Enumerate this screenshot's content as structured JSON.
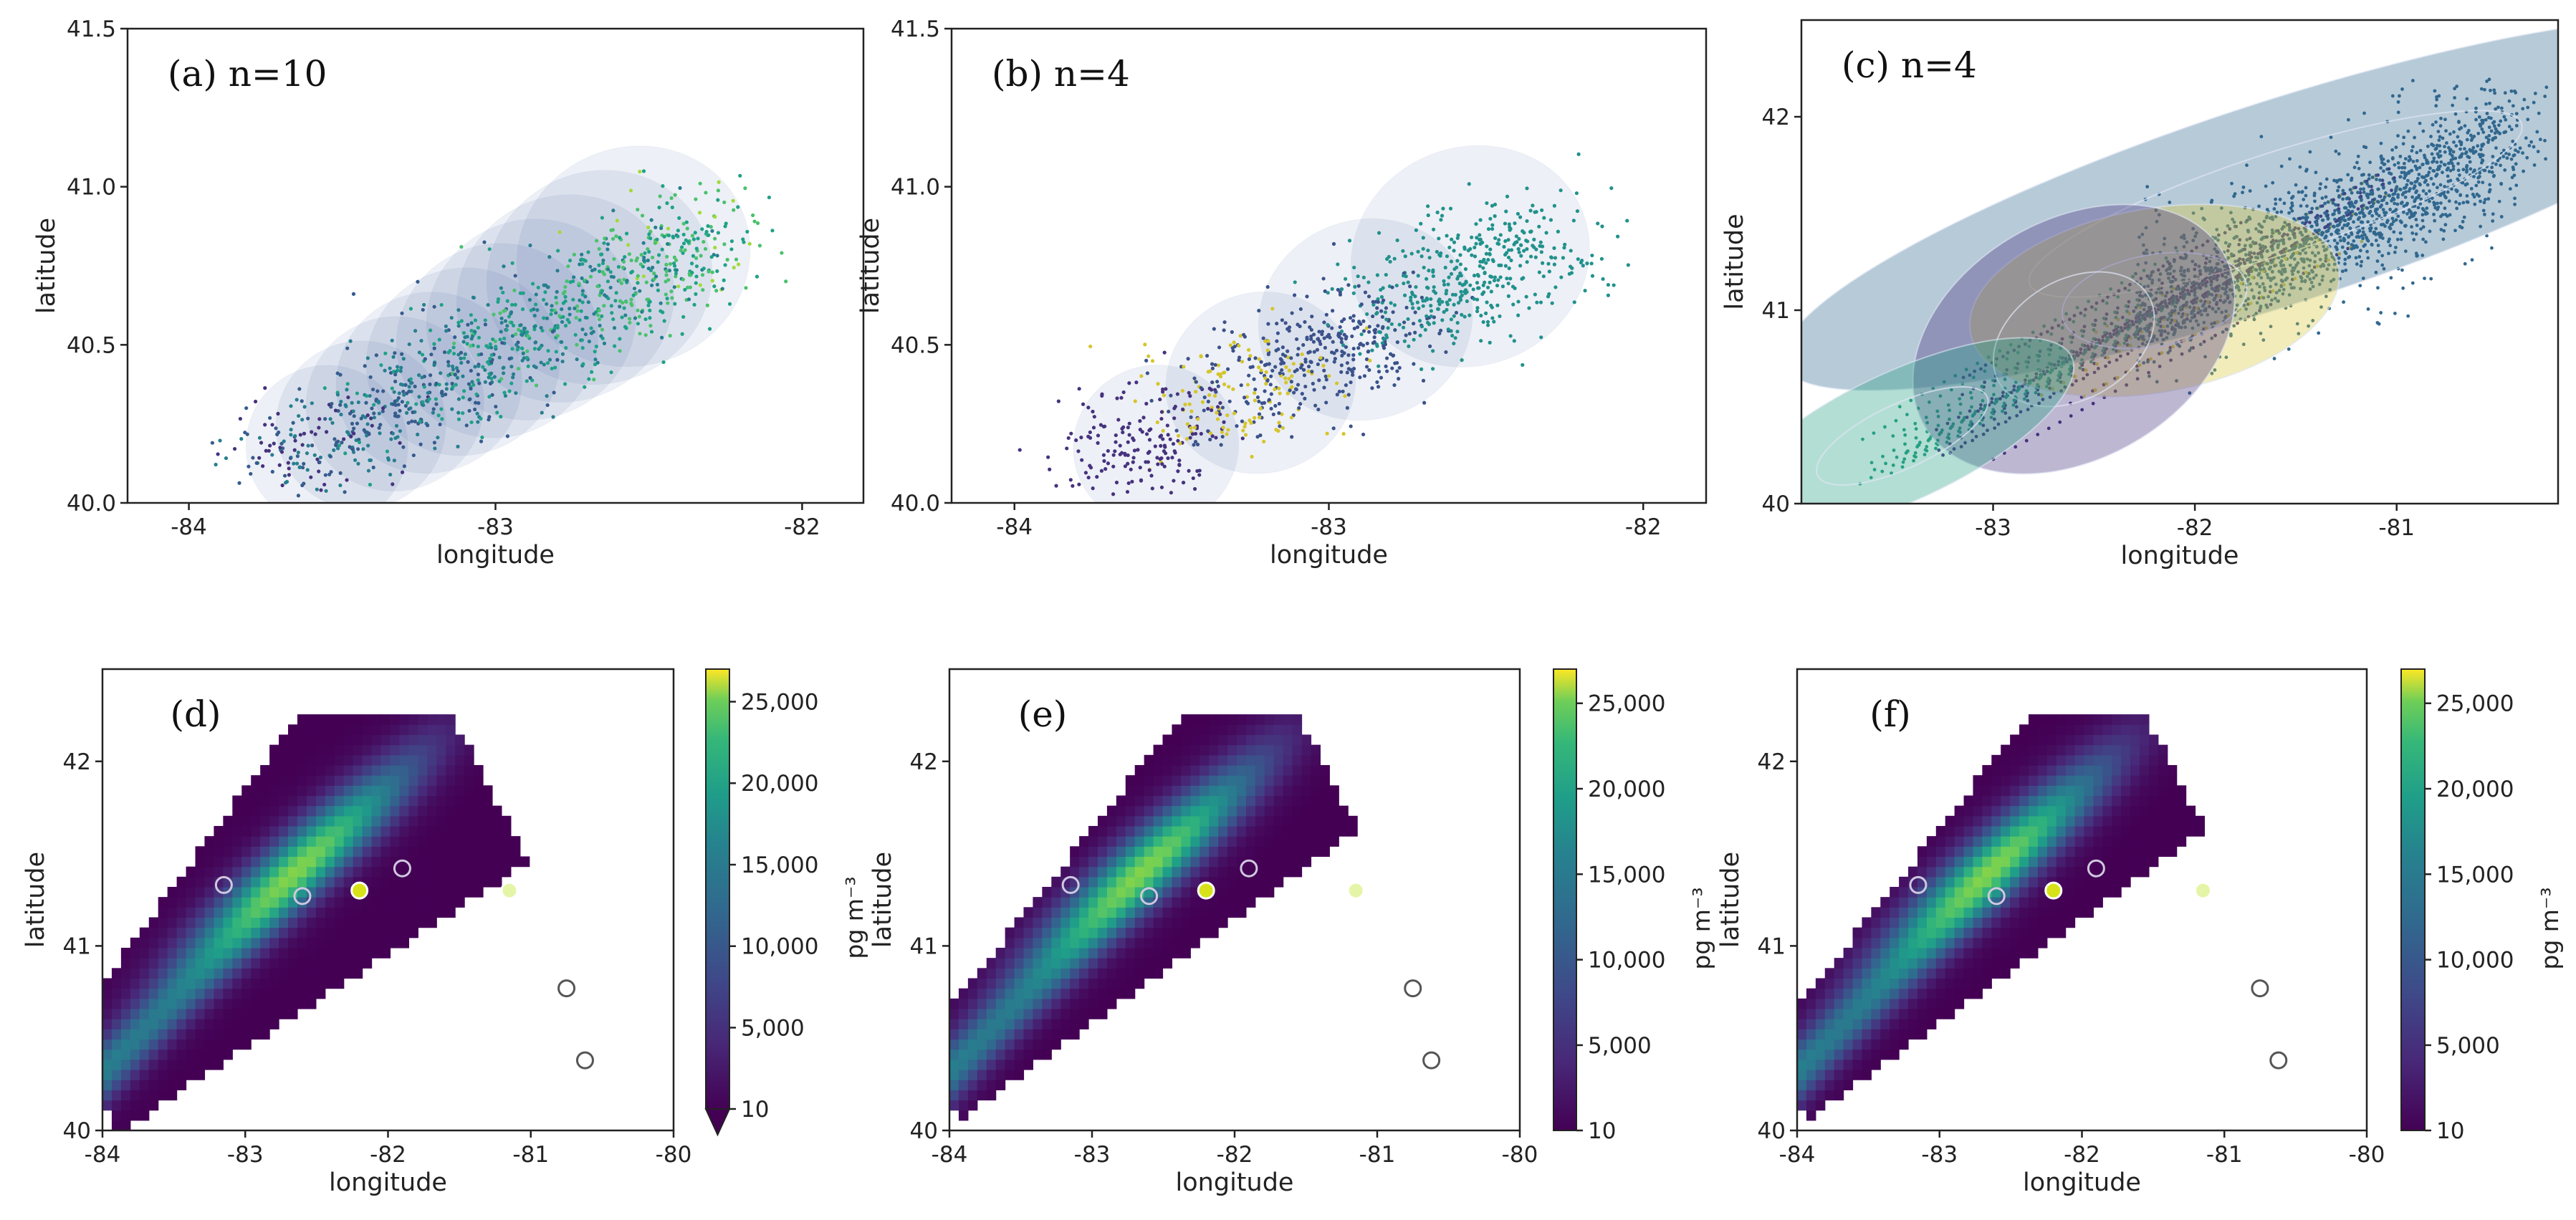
{
  "chart_data": [
    {
      "panel": "a",
      "type": "scatter",
      "title": "(a) n=10",
      "xlabel": "longitude",
      "ylabel": "latitude",
      "xlim": [
        -84.2,
        -81.8
      ],
      "ylim": [
        40.0,
        41.5
      ],
      "xticks": [
        "-84",
        "-83",
        "-82"
      ],
      "yticks": [
        "40.0",
        "40.5",
        "41.0",
        "41.5"
      ],
      "xtick_values": [
        -84,
        -83,
        -82
      ],
      "ytick_values": [
        40.0,
        40.5,
        41.0,
        41.5
      ],
      "mixture_components": 10,
      "grid": false,
      "legend": "none"
    },
    {
      "panel": "b",
      "type": "scatter",
      "title": "(b) n=4",
      "xlabel": "longitude",
      "ylabel": "latitude",
      "xlim": [
        -84.2,
        -81.8
      ],
      "ylim": [
        40.0,
        41.5
      ],
      "xticks": [
        "-84",
        "-83",
        "-82"
      ],
      "yticks": [
        "40.0",
        "40.5",
        "41.0",
        "41.5"
      ],
      "xtick_values": [
        -84,
        -83,
        -82
      ],
      "ytick_values": [
        40.0,
        40.5,
        41.0,
        41.5
      ],
      "mixture_components": 4,
      "grid": false,
      "legend": "none"
    },
    {
      "panel": "c",
      "type": "scatter",
      "title": "(c) n=4",
      "xlabel": "longitude",
      "ylabel": "latitude",
      "xlim": [
        -83.95,
        -80.2
      ],
      "ylim": [
        40.0,
        42.5
      ],
      "xticks": [
        "-83",
        "-82",
        "-81"
      ],
      "yticks": [
        "40",
        "41",
        "42"
      ],
      "xtick_values": [
        -83,
        -82,
        -81
      ],
      "ytick_values": [
        40,
        41,
        42
      ],
      "mixture_components": 4,
      "grid": false,
      "legend": "none"
    },
    {
      "panel": "d",
      "type": "heatmap",
      "title": "(d)",
      "xlabel": "longitude",
      "ylabel": "latitude",
      "xlim": [
        -84,
        -80
      ],
      "ylim": [
        40,
        42.5
      ],
      "xticks": [
        "-84",
        "-83",
        "-82",
        "-81",
        "-80"
      ],
      "yticks": [
        "40",
        "41",
        "42"
      ],
      "xtick_values": [
        -84,
        -83,
        -82,
        -81,
        -80
      ],
      "ytick_values": [
        40,
        41,
        42
      ],
      "colorbar": {
        "label": "pg m⁻³",
        "min": 10,
        "max": 27000,
        "ticks": [
          "10",
          "5,000",
          "10,000",
          "15,000",
          "20,000",
          "25,000"
        ],
        "tick_values": [
          10,
          5000,
          10000,
          15000,
          20000,
          25000
        ],
        "extend": "min"
      },
      "colormap": "viridis",
      "stations": [
        {
          "lon": -83.15,
          "lat": 41.33,
          "fill": "none"
        },
        {
          "lon": -82.6,
          "lat": 41.27,
          "fill": "none"
        },
        {
          "lon": -82.2,
          "lat": 41.3,
          "fill": "#d8e219"
        },
        {
          "lon": -81.9,
          "lat": 41.42,
          "fill": "none"
        },
        {
          "lon": -81.15,
          "lat": 41.3,
          "fill": "#e5f5a8"
        },
        {
          "lon": -80.75,
          "lat": 40.77,
          "fill": "none"
        },
        {
          "lon": -80.62,
          "lat": 40.38,
          "fill": "none"
        }
      ]
    },
    {
      "panel": "e",
      "type": "heatmap",
      "title": "(e)",
      "xlabel": "longitude",
      "ylabel": "latitude",
      "xlim": [
        -84,
        -80
      ],
      "ylim": [
        40,
        42.5
      ],
      "xticks": [
        "-84",
        "-83",
        "-82",
        "-81",
        "-80"
      ],
      "yticks": [
        "40",
        "41",
        "42"
      ],
      "xtick_values": [
        -84,
        -83,
        -82,
        -81,
        -80
      ],
      "ytick_values": [
        40,
        41,
        42
      ],
      "colorbar": {
        "label": "pg m⁻³",
        "min": 10,
        "max": 27000,
        "ticks": [
          "10",
          "5,000",
          "10,000",
          "15,000",
          "20,000",
          "25,000"
        ],
        "tick_values": [
          10,
          5000,
          10000,
          15000,
          20000,
          25000
        ],
        "extend": "none"
      },
      "colormap": "viridis",
      "stations": [
        {
          "lon": -83.15,
          "lat": 41.33,
          "fill": "none"
        },
        {
          "lon": -82.6,
          "lat": 41.27,
          "fill": "none"
        },
        {
          "lon": -82.2,
          "lat": 41.3,
          "fill": "#d8e219"
        },
        {
          "lon": -81.9,
          "lat": 41.42,
          "fill": "none"
        },
        {
          "lon": -81.15,
          "lat": 41.3,
          "fill": "#e5f5a8"
        },
        {
          "lon": -80.75,
          "lat": 40.77,
          "fill": "none"
        },
        {
          "lon": -80.62,
          "lat": 40.38,
          "fill": "none"
        }
      ]
    },
    {
      "panel": "f",
      "type": "heatmap",
      "title": "(f)",
      "xlabel": "longitude",
      "ylabel": "latitude",
      "xlim": [
        -84,
        -80
      ],
      "ylim": [
        40,
        42.5
      ],
      "xticks": [
        "-84",
        "-83",
        "-82",
        "-81",
        "-80"
      ],
      "yticks": [
        "40",
        "41",
        "42"
      ],
      "xtick_values": [
        -84,
        -83,
        -82,
        -81,
        -80
      ],
      "ytick_values": [
        40,
        41,
        42
      ],
      "colorbar": {
        "label": "pg m⁻³",
        "min": 10,
        "max": 27000,
        "ticks": [
          "10",
          "5,000",
          "10,000",
          "15,000",
          "20,000",
          "25,000"
        ],
        "tick_values": [
          10,
          5000,
          10000,
          15000,
          20000,
          25000
        ],
        "extend": "none"
      },
      "colormap": "viridis",
      "stations": [
        {
          "lon": -83.15,
          "lat": 41.33,
          "fill": "none"
        },
        {
          "lon": -82.6,
          "lat": 41.27,
          "fill": "none"
        },
        {
          "lon": -82.2,
          "lat": 41.3,
          "fill": "#d8e219"
        },
        {
          "lon": -81.9,
          "lat": 41.42,
          "fill": "none"
        },
        {
          "lon": -81.15,
          "lat": 41.3,
          "fill": "#e5f5a8"
        },
        {
          "lon": -80.75,
          "lat": 40.77,
          "fill": "none"
        },
        {
          "lon": -80.62,
          "lat": 40.38,
          "fill": "none"
        }
      ]
    }
  ]
}
